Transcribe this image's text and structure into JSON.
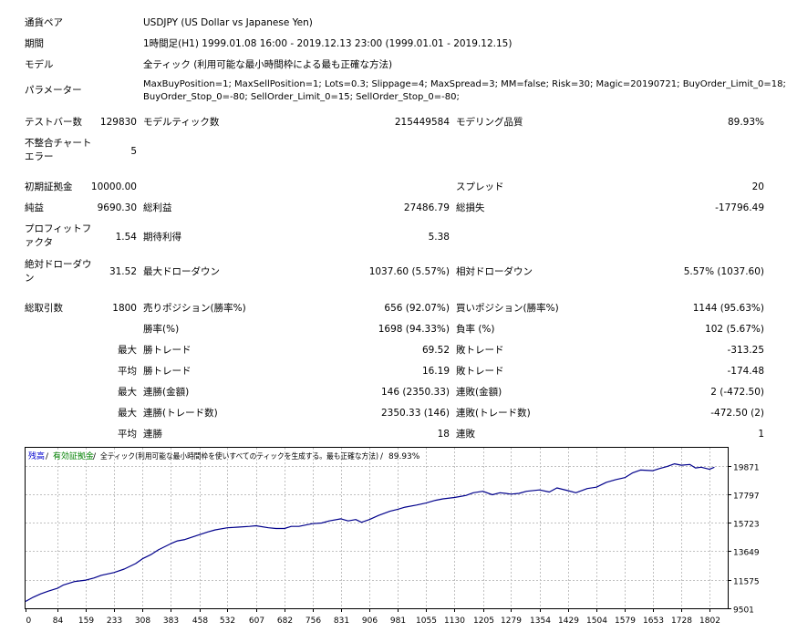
{
  "report": {
    "symbol_label": "通貨ペア",
    "symbol_value": "USDJPY (US Dollar vs Japanese Yen)",
    "period_label": "期間",
    "period_value": "1時間足(H1) 1999.01.08 16:00 - 2019.12.13 23:00 (1999.01.01 - 2019.12.15)",
    "model_label": "モデル",
    "model_value": "全ティック (利用可能な最小時間枠による最も正確な方法)",
    "params_label": "パラメーター",
    "params_line1": "MaxBuyPosition=1; MaxSellPosition=1; Lots=0.3; Slippage=4; MaxSpread=3; MM=false; Risk=30; Magic=20190721; BuyOrder_Limit_0=18;",
    "params_line2": "BuyOrder_Stop_0=-80; SellOrder_Limit_0=15; SellOrder_Stop_0=-80;",
    "bars_label": "テストバー数",
    "bars_value": "129830",
    "ticks_label": "モデルティック数",
    "ticks_value": "215449584",
    "quality_label": "モデリング品質",
    "quality_value": "89.93%",
    "mismatch_label": "不整合チャートエラー",
    "mismatch_value": "5",
    "deposit_label": "初期証拠金",
    "deposit_value": "10000.00",
    "spread_label": "スプレッド",
    "spread_value": "20",
    "netprofit_label": "純益",
    "netprofit_value": "9690.30",
    "grossprofit_label": "総利益",
    "grossprofit_value": "27486.79",
    "grossloss_label": "総損失",
    "grossloss_value": "-17796.49",
    "pf_label": "プロフィットファクタ",
    "pf_value": "1.54",
    "payoff_label": "期待利得",
    "payoff_value": "5.38",
    "absdd_label": "絶対ドローダウン",
    "absdd_value": "31.52",
    "maxdd_label": "最大ドローダウン",
    "maxdd_value": "1037.60 (5.57%)",
    "reldd_label": "相対ドローダウン",
    "reldd_value": "5.57% (1037.60)",
    "trades_label": "総取引数",
    "trades_value": "1800",
    "short_label": "売りポジション(勝率%)",
    "short_value": "656 (92.07%)",
    "long_label": "買いポジション(勝率%)",
    "long_value": "1144 (95.63%)",
    "winrate_label": "勝率(%)",
    "winrate_value": "1698 (94.33%)",
    "lossrate_label": "負率 (%)",
    "lossrate_value": "102 (5.67%)",
    "max_prefix": "最大",
    "avg_prefix": "平均",
    "largest_win_label": "勝トレード",
    "largest_win_value": "69.52",
    "largest_loss_label": "敗トレード",
    "largest_loss_value": "-313.25",
    "avg_win_label": "勝トレード",
    "avg_win_value": "16.19",
    "avg_loss_label": "敗トレード",
    "avg_loss_value": "-174.48",
    "consec_win_amt_label": "連勝(金額)",
    "consec_win_amt_value": "146 (2350.33)",
    "consec_loss_amt_label": "連敗(金額)",
    "consec_loss_amt_value": "2 (-472.50)",
    "consec_win_cnt_label": "連勝(トレード数)",
    "consec_win_cnt_value": "2350.33 (146)",
    "consec_loss_cnt_label": "連敗(トレード数)",
    "consec_loss_cnt_value": "-472.50 (2)",
    "avg_consec_win_label": "連勝",
    "avg_consec_win_value": "18",
    "avg_consec_loss_label": "連敗",
    "avg_consec_loss_value": "1"
  },
  "chart_header": {
    "balance": "残高",
    "sep1": " / ",
    "equity": "有効証拠金",
    "sep2": " / ",
    "model": "全ティック(利用可能な最小時間枠を使いすべてのティックを生成する。最も正確な方法)",
    "sep3": " / ",
    "quality": "89.93%"
  },
  "colors": {
    "balance_line": "#00008b",
    "balance_label": "#0000cd",
    "equity_label": "#008000",
    "grid": "#c0c0c0"
  },
  "chart_data": {
    "type": "line",
    "title": "",
    "xlabel": "",
    "ylabel": "",
    "x_ticks": [
      "0",
      "84",
      "159",
      "233",
      "308",
      "383",
      "458",
      "532",
      "607",
      "682",
      "756",
      "831",
      "906",
      "981",
      "1055",
      "1130",
      "1205",
      "1279",
      "1354",
      "1429",
      "1504",
      "1579",
      "1653",
      "1728",
      "1802"
    ],
    "y_ticks": [
      "19871",
      "17797",
      "15723",
      "13649",
      "11575",
      "9501"
    ],
    "xlim": [
      0,
      1850
    ],
    "ylim": [
      9501,
      20700
    ],
    "series": [
      {
        "x": [
          0,
          20,
          40,
          60,
          84,
          100,
          130,
          159,
          180,
          200,
          233,
          260,
          290,
          308,
          330,
          350,
          383,
          400,
          420,
          458,
          480,
          500,
          532,
          560,
          590,
          607,
          640,
          660,
          682,
          700,
          720,
          756,
          780,
          800,
          831,
          850,
          870,
          885,
          906,
          930,
          960,
          981,
          1000,
          1030,
          1055,
          1080,
          1100,
          1130,
          1160,
          1180,
          1205,
          1230,
          1250,
          1265,
          1279,
          1300,
          1320,
          1354,
          1380,
          1400,
          1429,
          1450,
          1480,
          1504,
          1530,
          1555,
          1579,
          1600,
          1620,
          1653,
          1670,
          1690,
          1710,
          1728,
          1750,
          1765,
          1780,
          1802,
          1815
        ],
        "y": [
          10000,
          10300,
          10550,
          10750,
          10950,
          11200,
          11450,
          11550,
          11700,
          11900,
          12100,
          12350,
          12750,
          13100,
          13400,
          13750,
          14200,
          14400,
          14500,
          14850,
          15050,
          15200,
          15350,
          15400,
          15450,
          15500,
          15350,
          15300,
          15300,
          15450,
          15450,
          15650,
          15700,
          15850,
          16000,
          15850,
          15950,
          15750,
          15950,
          16250,
          16550,
          16700,
          16850,
          17000,
          17150,
          17350,
          17450,
          17550,
          17700,
          17900,
          18000,
          17750,
          17900,
          17850,
          17800,
          17850,
          18000,
          18100,
          17950,
          18250,
          18050,
          17900,
          18200,
          18300,
          18650,
          18850,
          19000,
          19350,
          19550,
          19500,
          19650,
          19800,
          20000,
          19900,
          19950,
          19700,
          19750,
          19600,
          19750
        ]
      }
    ]
  }
}
